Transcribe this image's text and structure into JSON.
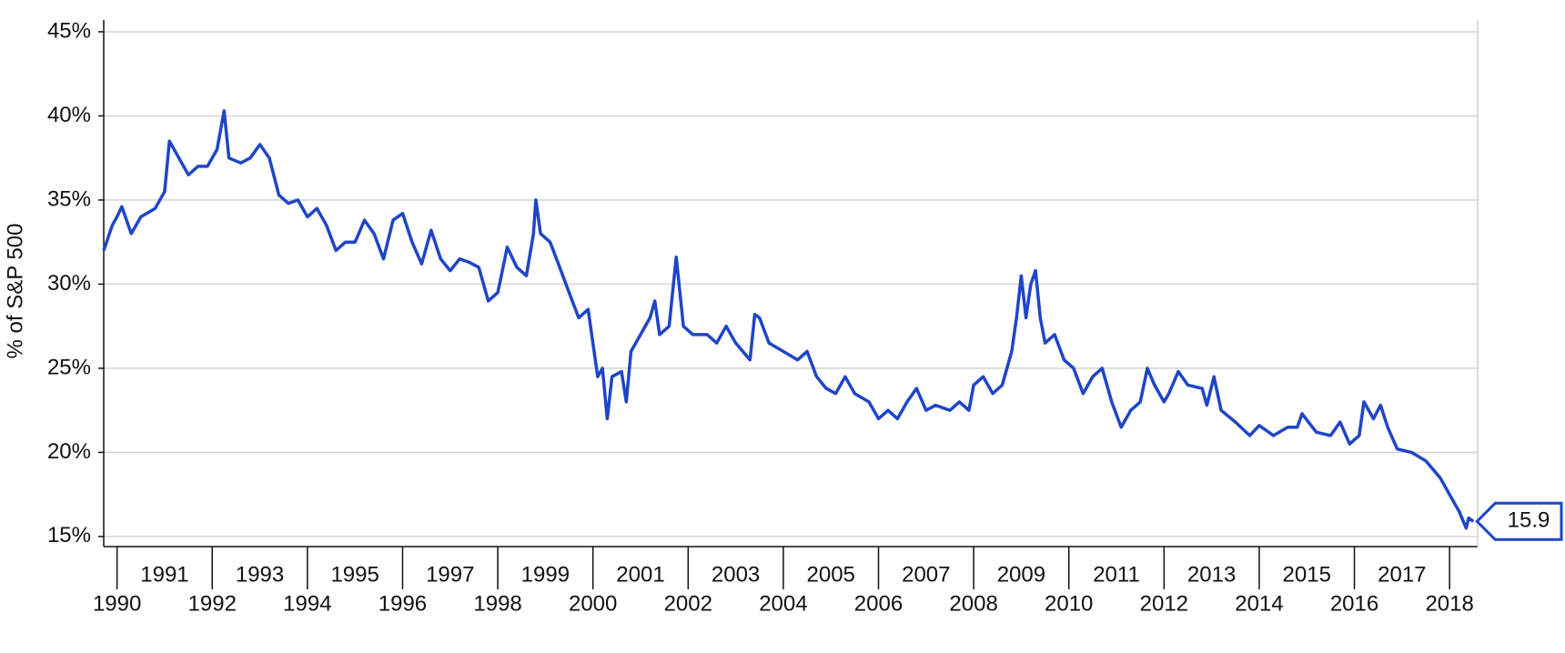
{
  "chart_data": {
    "type": "line",
    "y_label": "% of S&P 500",
    "color": "#1f45c8",
    "grid": true,
    "x": [
      1989.72,
      1989.9,
      1990.0,
      1990.1,
      1990.3,
      1990.5,
      1990.8,
      1991.0,
      1991.1,
      1991.3,
      1991.5,
      1991.7,
      1991.9,
      1992.1,
      1992.25,
      1992.35,
      1992.6,
      1992.8,
      1993.0,
      1993.2,
      1993.4,
      1993.6,
      1993.8,
      1994.0,
      1994.2,
      1994.4,
      1994.6,
      1994.8,
      1995.0,
      1995.2,
      1995.4,
      1995.6,
      1995.8,
      1996.0,
      1996.2,
      1996.4,
      1996.6,
      1996.8,
      1997.0,
      1997.2,
      1997.4,
      1997.6,
      1997.8,
      1998.0,
      1998.2,
      1998.4,
      1998.6,
      1998.75,
      1998.8,
      1998.9,
      1999.1,
      1999.3,
      1999.5,
      1999.7,
      1999.9,
      2000.1,
      2000.2,
      2000.3,
      2000.4,
      2000.6,
      2000.7,
      2000.8,
      2001.0,
      2001.2,
      2001.3,
      2001.4,
      2001.6,
      2001.75,
      2001.9,
      2002.1,
      2002.4,
      2002.6,
      2002.8,
      2003.0,
      2003.3,
      2003.4,
      2003.5,
      2003.7,
      2004.0,
      2004.3,
      2004.5,
      2004.7,
      2004.9,
      2005.1,
      2005.3,
      2005.5,
      2005.8,
      2006.0,
      2006.2,
      2006.4,
      2006.6,
      2006.8,
      2007.0,
      2007.2,
      2007.5,
      2007.7,
      2007.9,
      2008.0,
      2008.2,
      2008.4,
      2008.6,
      2008.8,
      2008.9,
      2009.0,
      2009.1,
      2009.2,
      2009.3,
      2009.4,
      2009.5,
      2009.7,
      2009.9,
      2010.1,
      2010.3,
      2010.5,
      2010.7,
      2010.9,
      2011.1,
      2011.3,
      2011.5,
      2011.65,
      2011.8,
      2012.0,
      2012.1,
      2012.3,
      2012.5,
      2012.8,
      2012.9,
      2013.05,
      2013.2,
      2013.5,
      2013.8,
      2014.0,
      2014.3,
      2014.6,
      2014.8,
      2014.9,
      2015.2,
      2015.5,
      2015.7,
      2015.9,
      2016.1,
      2016.2,
      2016.4,
      2016.55,
      2016.7,
      2016.9,
      2017.2,
      2017.5,
      2017.8,
      2018.0,
      2018.2,
      2018.35,
      2018.4,
      2018.5
    ],
    "values": [
      32.0,
      33.5,
      34.0,
      34.6,
      33.0,
      34.0,
      34.5,
      35.5,
      38.5,
      37.5,
      36.5,
      37.0,
      37.0,
      38.0,
      40.3,
      37.5,
      37.2,
      37.5,
      38.3,
      37.5,
      35.3,
      34.8,
      35.0,
      34.0,
      34.5,
      33.5,
      32.0,
      32.5,
      32.5,
      33.8,
      33.0,
      31.5,
      33.8,
      34.2,
      32.5,
      31.2,
      33.2,
      31.5,
      30.8,
      31.5,
      31.3,
      31.0,
      29.0,
      29.5,
      32.2,
      31.0,
      30.5,
      33.0,
      35.0,
      33.0,
      32.5,
      31.0,
      29.5,
      28.0,
      28.5,
      24.5,
      25.0,
      22.0,
      24.5,
      24.8,
      23.0,
      26.0,
      27.0,
      28.0,
      29.0,
      27.0,
      27.5,
      31.6,
      27.5,
      27.0,
      27.0,
      26.5,
      27.5,
      26.5,
      25.5,
      28.2,
      28.0,
      26.5,
      26.0,
      25.5,
      26.0,
      24.5,
      23.8,
      23.5,
      24.5,
      23.5,
      23.0,
      22.0,
      22.5,
      22.0,
      23.0,
      23.8,
      22.5,
      22.8,
      22.5,
      23.0,
      22.5,
      24.0,
      24.5,
      23.5,
      24.0,
      26.0,
      28.0,
      30.5,
      28.0,
      30.0,
      30.8,
      28.0,
      26.5,
      27.0,
      25.5,
      25.0,
      23.5,
      24.5,
      25.0,
      23.0,
      21.5,
      22.5,
      23.0,
      25.0,
      24.0,
      23.0,
      23.5,
      24.8,
      24.0,
      23.8,
      22.8,
      24.5,
      22.5,
      21.8,
      21.0,
      21.6,
      21.0,
      21.5,
      21.5,
      22.3,
      21.2,
      21.0,
      21.8,
      20.5,
      21.0,
      23.0,
      22.0,
      22.8,
      21.5,
      20.2,
      20.0,
      19.5,
      18.5,
      17.5,
      16.5,
      15.5,
      16.1,
      15.9
    ],
    "xlim": [
      1989.72,
      2018.59
    ],
    "xticks": [
      1990,
      1991,
      1992,
      1993,
      1994,
      1995,
      1996,
      1997,
      1998,
      1999,
      2000,
      2001,
      2002,
      2003,
      2004,
      2005,
      2006,
      2007,
      2008,
      2009,
      2010,
      2011,
      2012,
      2013,
      2014,
      2015,
      2016,
      2017,
      2018
    ],
    "ylim": [
      14.4,
      45.7
    ],
    "yticks": [
      {
        "value": 15,
        "label": "15%"
      },
      {
        "value": 20,
        "label": "20%"
      },
      {
        "value": 25,
        "label": "25%"
      },
      {
        "value": 30,
        "label": "30%"
      },
      {
        "value": 35,
        "label": "35%"
      },
      {
        "value": 40,
        "label": "40%"
      },
      {
        "value": 45,
        "label": "45%"
      }
    ]
  }
}
